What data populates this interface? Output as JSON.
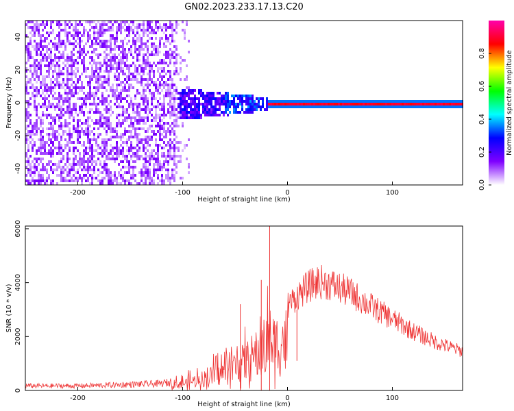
{
  "title": "GN02.2023.233.17.13.C20",
  "chart_data": [
    {
      "type": "heatmap",
      "xlabel": "Height of straight line (km)",
      "ylabel": "Frequency (Hz)",
      "xlim": [
        -250,
        167
      ],
      "ylim": [
        -50,
        50
      ],
      "xticks": [
        -200,
        -100,
        0,
        100
      ],
      "yticks": [
        -40,
        -20,
        0,
        20,
        40
      ],
      "colorbar": {
        "label": "Normalized spectral amplitude",
        "range": [
          0,
          1
        ],
        "ticks": [
          "0.0",
          "0.2",
          "0.4",
          "0.6",
          "0.8"
        ],
        "colors": [
          "#ffffff",
          "#7f00ff",
          "#0000ff",
          "#00ffff",
          "#00ff00",
          "#ffff00",
          "#ff0000",
          "#ff00aa"
        ]
      },
      "description_regions": [
        {
          "x_range": [
            -250,
            -105
          ],
          "freq_range": [
            -50,
            50
          ],
          "amplitude": 0.1
        },
        {
          "x_range": [
            -105,
            -20
          ],
          "freq_range": [
            -10,
            8
          ],
          "amplitude": 0.25
        },
        {
          "x_range": [
            -20,
            167
          ],
          "freq_range": [
            -1,
            1
          ],
          "amplitude": 0.85
        }
      ]
    },
    {
      "type": "line",
      "xlabel": "Height of straight line (km)",
      "ylabel": "SNR (10 * v/v)",
      "xlim": [
        -250,
        167
      ],
      "ylim": [
        0,
        6100
      ],
      "xticks": [
        -200,
        -100,
        0,
        100
      ],
      "yticks": [
        0,
        2000,
        4000,
        6000
      ],
      "color": "#ee3333",
      "envelope": {
        "x": [
          -250,
          -200,
          -150,
          -120,
          -100,
          -80,
          -60,
          -40,
          -25,
          -17,
          -12,
          0,
          10,
          20,
          30,
          40,
          60,
          80,
          100,
          120,
          140,
          167
        ],
        "y": [
          200,
          200,
          260,
          300,
          450,
          800,
          1200,
          1900,
          2600,
          3300,
          3000,
          3400,
          3800,
          4150,
          4350,
          4250,
          3900,
          3350,
          2850,
          2350,
          1950,
          1550
        ]
      },
      "spikes": [
        {
          "x": -17,
          "y": 6100
        },
        {
          "x": -25,
          "y": 4100
        },
        {
          "x": -45,
          "y": 3200
        },
        {
          "x": 9,
          "y": 1100
        }
      ]
    }
  ]
}
